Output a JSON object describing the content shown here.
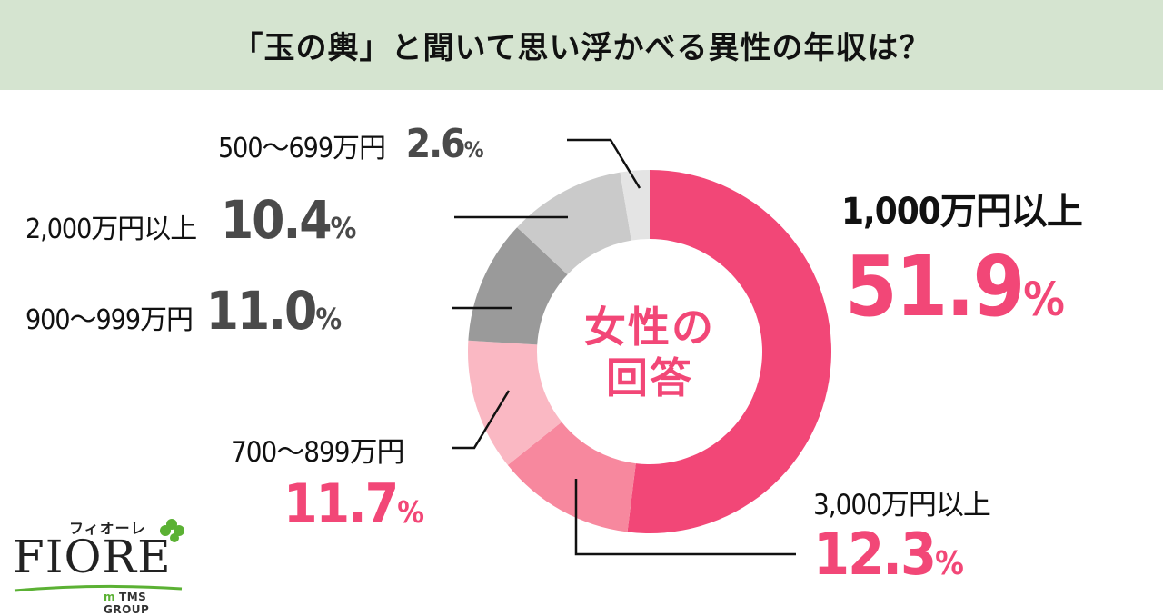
{
  "header": {
    "title": "「玉の輿」と聞いて思い浮かべる異性の年収は？"
  },
  "center_label": {
    "line1": "女性の",
    "line2": "回答"
  },
  "labels": {
    "s1000": {
      "category": "1,000万円以上",
      "value": "51.9",
      "unit": "%"
    },
    "s3000": {
      "category": "3,000万円以上",
      "value": "12.3",
      "unit": "%"
    },
    "s700": {
      "category": "700〜899万円",
      "value": "11.7",
      "unit": "%"
    },
    "s900": {
      "category": "900〜999万円",
      "value": "11.0",
      "unit": "%"
    },
    "s2000": {
      "category": "2,000万円以上",
      "value": "10.4",
      "unit": "%"
    },
    "s500": {
      "category": "500〜699万円",
      "value": "2.6",
      "unit": "%"
    }
  },
  "logo": {
    "kana": "フィオーレ",
    "word": "FIORE",
    "group": "TMS GROUP",
    "group_mark": "m"
  },
  "colors": {
    "header_bg": "#d5e4d0",
    "accent_pink": "#f24777",
    "slice_colors": [
      "#f24777",
      "#f7889e",
      "#fab8c3",
      "#9a9a9a",
      "#cacaca",
      "#e4e4e4"
    ],
    "logo_green": "#5bb134"
  },
  "chart_data": {
    "type": "pie",
    "subtype": "donut",
    "title": "「玉の輿」と聞いて思い浮かべる異性の年収は？",
    "center_text": "女性の回答",
    "categories": [
      "1,000万円以上",
      "3,000万円以上",
      "700〜899万円",
      "900〜999万円",
      "2,000万円以上",
      "500〜699万円"
    ],
    "values": [
      51.9,
      12.3,
      11.7,
      11.0,
      10.4,
      2.6
    ],
    "unit": "%",
    "start_angle": "12 o'clock",
    "direction": "clockwise",
    "legend": "none (direct labels with leader lines)"
  }
}
